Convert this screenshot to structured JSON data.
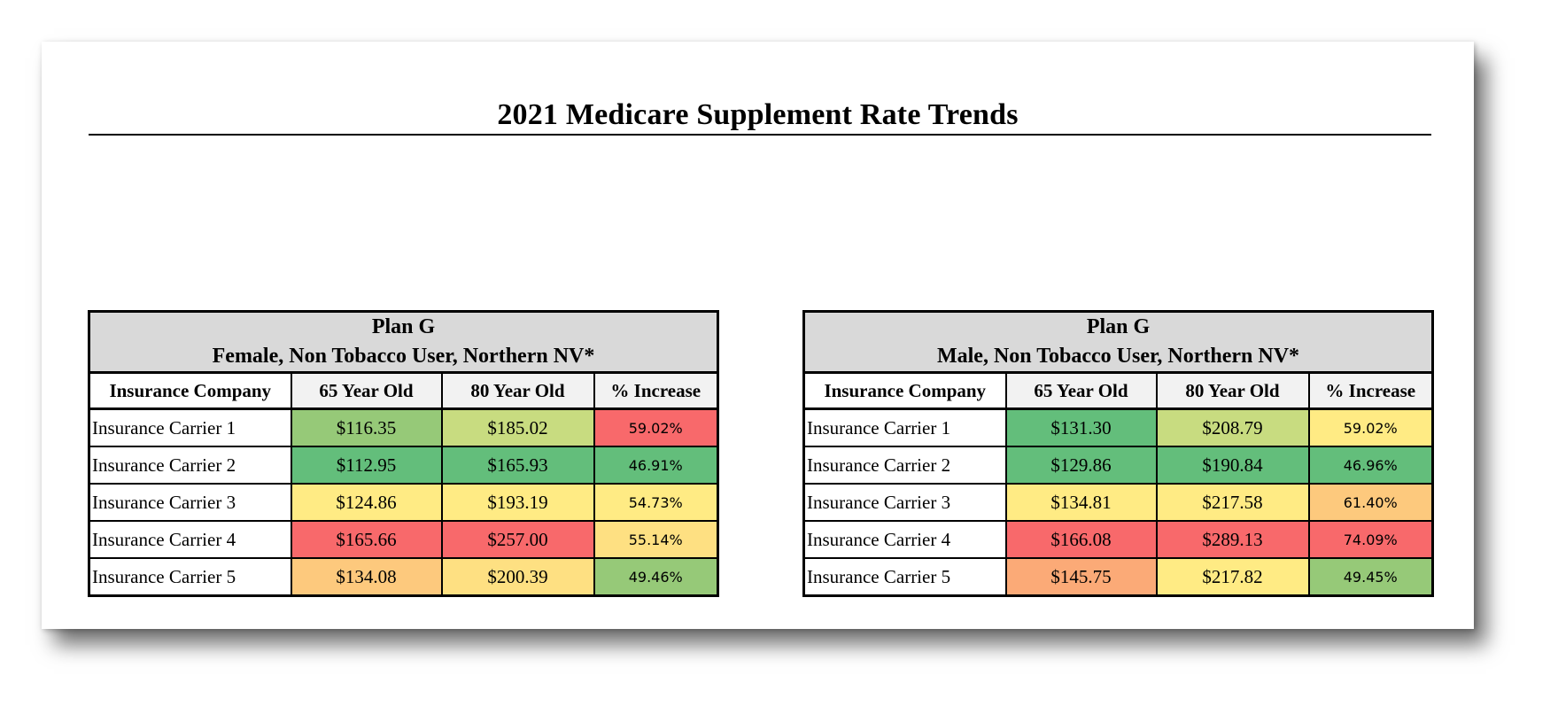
{
  "title": "2021 Medicare Supplement Rate Trends",
  "column_headers": [
    "Insurance Company",
    "65 Year Old",
    "80 Year Old",
    "% Increase"
  ],
  "colors": {
    "green_dark": "#63be7b",
    "green_light": "#96c978",
    "yellow_green": "#c8dc80",
    "yellow": "#ffeb84",
    "orange": "#fdc97d",
    "red": "#f8696b",
    "header_gray": "#d9d9d9"
  },
  "tables": [
    {
      "plan": "Plan G",
      "subtitle": "Female, Non Tobacco User, Northern NV*",
      "rows": [
        {
          "carrier": "Insurance Carrier 1",
          "age65": "$116.35",
          "age80": "$185.02",
          "increase": "59.02%",
          "c65": "#96c978",
          "c80": "#c8dc80",
          "cinc": "#f8696b"
        },
        {
          "carrier": "Insurance Carrier 2",
          "age65": "$112.95",
          "age80": "$165.93",
          "increase": "46.91%",
          "c65": "#63be7b",
          "c80": "#63be7b",
          "cinc": "#63be7b"
        },
        {
          "carrier": "Insurance Carrier 3",
          "age65": "$124.86",
          "age80": "$193.19",
          "increase": "54.73%",
          "c65": "#ffeb84",
          "c80": "#ffeb84",
          "cinc": "#ffeb84"
        },
        {
          "carrier": "Insurance Carrier 4",
          "age65": "$165.66",
          "age80": "$257.00",
          "increase": "55.14%",
          "c65": "#f8696b",
          "c80": "#f8696b",
          "cinc": "#fee082"
        },
        {
          "carrier": "Insurance Carrier 5",
          "age65": "$134.08",
          "age80": "$200.39",
          "increase": "49.46%",
          "c65": "#fdc97d",
          "c80": "#fee082",
          "cinc": "#96c978"
        }
      ]
    },
    {
      "plan": "Plan G",
      "subtitle": "Male, Non Tobacco User, Northern NV*",
      "rows": [
        {
          "carrier": "Insurance Carrier 1",
          "age65": "$131.30",
          "age80": "$208.79",
          "increase": "59.02%",
          "c65": "#63be7b",
          "c80": "#c8dc80",
          "cinc": "#ffeb84"
        },
        {
          "carrier": "Insurance Carrier 2",
          "age65": "$129.86",
          "age80": "$190.84",
          "increase": "46.96%",
          "c65": "#63be7b",
          "c80": "#63be7b",
          "cinc": "#63be7b"
        },
        {
          "carrier": "Insurance Carrier 3",
          "age65": "$134.81",
          "age80": "$217.58",
          "increase": "61.40%",
          "c65": "#ffeb84",
          "c80": "#ffeb84",
          "cinc": "#fdc97d"
        },
        {
          "carrier": "Insurance Carrier 4",
          "age65": "$166.08",
          "age80": "$289.13",
          "increase": "74.09%",
          "c65": "#f8696b",
          "c80": "#f8696b",
          "cinc": "#f8696b"
        },
        {
          "carrier": "Insurance Carrier 5",
          "age65": "$145.75",
          "age80": "$217.82",
          "increase": "49.45%",
          "c65": "#fbaa77",
          "c80": "#ffeb84",
          "cinc": "#96c978"
        }
      ]
    }
  ]
}
